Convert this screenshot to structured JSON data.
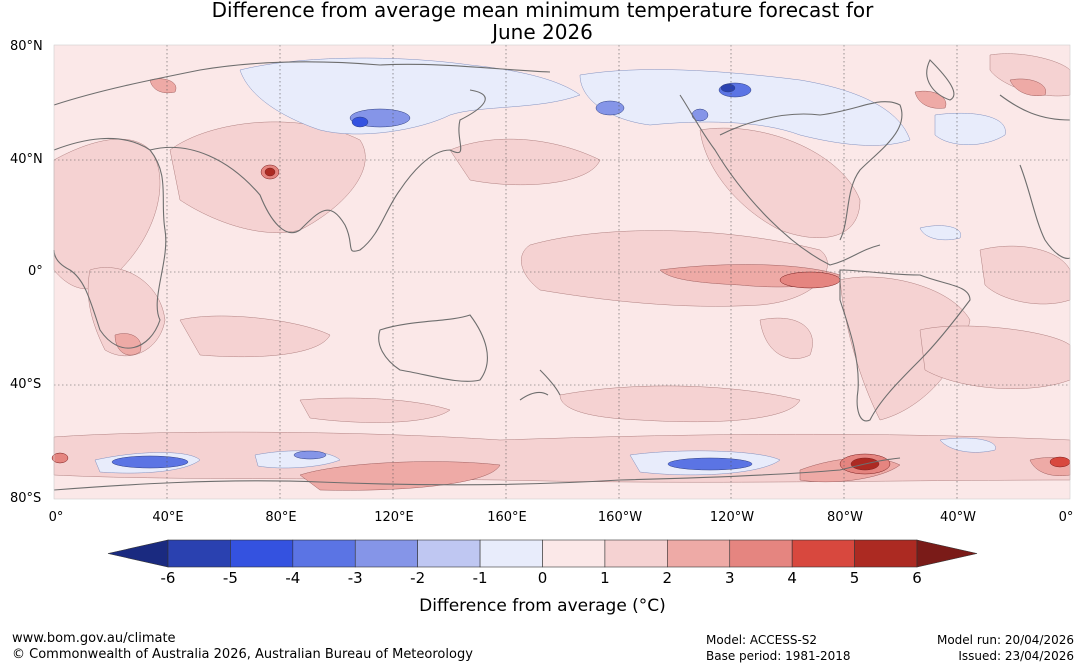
{
  "title": {
    "line1": "Difference from average mean minimum temperature forecast for",
    "line2": "June 2026"
  },
  "map": {
    "lat_labels": [
      "80°N",
      "40°N",
      "0°",
      "40°S",
      "80°S"
    ],
    "lon_labels": [
      "0°",
      "40°E",
      "80°E",
      "120°E",
      "160°E",
      "160°W",
      "120°W",
      "80°W",
      "40°W",
      "0°"
    ],
    "anomalies": [
      {
        "region": "Central Asia warm spot",
        "value": 5
      },
      {
        "region": "Eastern equatorial Pacific warm tongue",
        "value": 3
      },
      {
        "region": "Siberia cool patches",
        "value": -2
      },
      {
        "region": "Alaska / Canada cool patches",
        "value": -3
      },
      {
        "region": "Southern Ocean cool band",
        "value": -3
      },
      {
        "region": "Antarctic Peninsula warm spot",
        "value": 5
      }
    ]
  },
  "colorbar": {
    "ticks": [
      "-6",
      "-5",
      "-4",
      "-3",
      "-2",
      "-1",
      "0",
      "1",
      "2",
      "3",
      "4",
      "5",
      "6"
    ],
    "colors": [
      "#1a2a80",
      "#2a41b0",
      "#3452e0",
      "#5b74e4",
      "#8595e8",
      "#bfc7f2",
      "#e8ecfb",
      "#fbe8e8",
      "#f5d2d2",
      "#eeaaa6",
      "#e58580",
      "#d8483e",
      "#ac2a22",
      "#7a1b18"
    ],
    "label": "Difference from average (°C)"
  },
  "footer": {
    "url": "www.bom.gov.au/climate",
    "copyright": "© Commonwealth of Australia 2026, Australian Bureau of Meteorology",
    "model": "Model: ACCESS-S2",
    "base_period": "Base period: 1981-2018",
    "model_run": "Model run: 20/04/2026",
    "issued": "Issued: 23/04/2026"
  }
}
